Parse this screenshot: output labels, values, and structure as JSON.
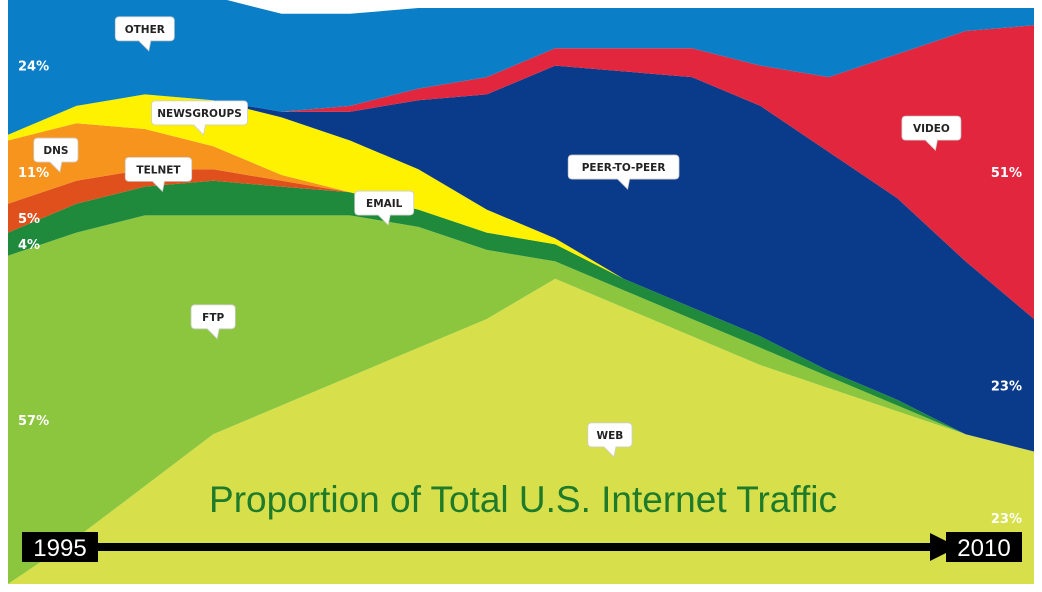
{
  "chart_data": {
    "type": "area",
    "title": "Proportion of Total U.S. Internet Traffic",
    "x_start_label": "1995",
    "x_end_label": "2010",
    "x": [
      1995,
      1996,
      1997,
      1998,
      1999,
      2000,
      2001,
      2002,
      2003,
      2004,
      2005,
      2006,
      2007,
      2008,
      2009,
      2010
    ],
    "stacked": true,
    "normalized_percent": true,
    "series": [
      {
        "name": "WEB",
        "color": "#d7e04a",
        "values": [
          0,
          8,
          17,
          26,
          31,
          36,
          41,
          46,
          53,
          48,
          43,
          38,
          34,
          30,
          26,
          23
        ]
      },
      {
        "name": "FTP",
        "color": "#8cc63f",
        "values": [
          57,
          53,
          47,
          38,
          33,
          28,
          21,
          12,
          3,
          3,
          3,
          3,
          2,
          1,
          0,
          0
        ]
      },
      {
        "name": "EMAIL",
        "color": "#1f8a3c",
        "values": [
          4,
          5,
          5,
          6,
          5,
          4,
          3,
          3,
          3,
          2,
          2,
          2,
          1,
          1,
          0,
          0
        ]
      },
      {
        "name": "TELNET",
        "color": "#e0501c",
        "values": [
          5,
          4,
          3,
          2,
          1,
          0,
          0,
          0,
          0,
          0,
          0,
          0,
          0,
          0,
          0,
          0
        ]
      },
      {
        "name": "DNS",
        "color": "#f7941e",
        "values": [
          11,
          10,
          7,
          4,
          1,
          0,
          0,
          0,
          0,
          0,
          0,
          0,
          0,
          0,
          0,
          0
        ]
      },
      {
        "name": "NEWSGROUPS",
        "color": "#fff200",
        "values": [
          1,
          3,
          6,
          8,
          10,
          9,
          7,
          4,
          1,
          0,
          0,
          0,
          0,
          0,
          0,
          0
        ]
      },
      {
        "name": "PEER-TO-PEER",
        "color": "#0a3a8a",
        "values": [
          0,
          0,
          0,
          0,
          1,
          5,
          12,
          20,
          30,
          36,
          40,
          40,
          38,
          35,
          30,
          23
        ]
      },
      {
        "name": "VIDEO",
        "color": "#e2263d",
        "values": [
          0,
          0,
          0,
          0,
          0,
          1,
          2,
          3,
          3,
          4,
          5,
          7,
          13,
          25,
          40,
          51
        ]
      },
      {
        "name": "OTHER",
        "color": "#0a7fc8",
        "values": [
          24,
          22,
          20,
          18,
          17,
          16,
          14,
          12,
          7,
          7,
          7,
          10,
          12,
          8,
          4,
          3
        ]
      }
    ],
    "start_labels": [
      {
        "series": "OTHER",
        "text": "24%"
      },
      {
        "series": "DNS",
        "text": "11%"
      },
      {
        "series": "TELNET",
        "text": "5%"
      },
      {
        "series": "EMAIL",
        "text": "4%"
      },
      {
        "series": "FTP",
        "text": "57%"
      }
    ],
    "end_labels": [
      {
        "series": "VIDEO",
        "text": "51%"
      },
      {
        "series": "PEER-TO-PEER",
        "text": "23%"
      },
      {
        "series": "WEB",
        "text": "23%"
      }
    ],
    "callouts": [
      {
        "text": "OTHER",
        "series": "OTHER",
        "x": 1997
      },
      {
        "text": "DNS",
        "series": "DNS",
        "x": 1995.7
      },
      {
        "text": "NEWSGROUPS",
        "series": "NEWSGROUPS",
        "x": 1997.8
      },
      {
        "text": "TELNET",
        "series": "TELNET",
        "x": 1997.2
      },
      {
        "text": "EMAIL",
        "series": "EMAIL",
        "x": 2000.5
      },
      {
        "text": "FTP",
        "series": "FTP",
        "x": 1998
      },
      {
        "text": "PEER-TO-PEER",
        "series": "PEER-TO-PEER",
        "x": 2004
      },
      {
        "text": "WEB",
        "series": "WEB",
        "x": 2003.8
      },
      {
        "text": "VIDEO",
        "series": "VIDEO",
        "x": 2008.5
      }
    ]
  },
  "colors": {
    "title": "#1f7a2a",
    "arrow": "#000000",
    "background": "#ffffff"
  }
}
